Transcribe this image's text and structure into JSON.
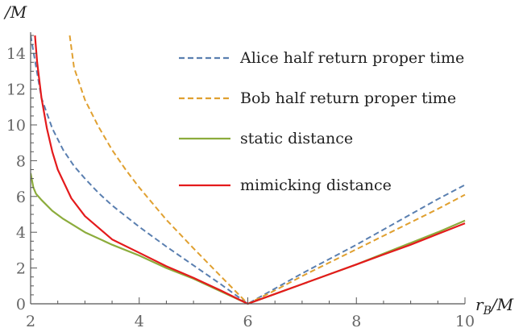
{
  "chart_data": {
    "type": "line",
    "xlabel": "r_B/M",
    "ylabel": "/M",
    "xlim": [
      2,
      10
    ],
    "ylim": [
      0,
      15
    ],
    "x_ticks": [
      2,
      4,
      6,
      8,
      10
    ],
    "y_ticks": [
      0,
      2,
      4,
      6,
      8,
      10,
      12,
      14
    ],
    "grid": false,
    "legend_position": "top-right",
    "series": [
      {
        "name": "Alice half return proper time",
        "color": "#5a7fb0",
        "style": "dashed",
        "points": [
          [
            2.0,
            15.0
          ],
          [
            2.2,
            11.5
          ],
          [
            2.4,
            9.8
          ],
          [
            2.6,
            8.6
          ],
          [
            2.8,
            7.7
          ],
          [
            3.0,
            7.0
          ],
          [
            3.25,
            6.2
          ],
          [
            3.5,
            5.5
          ],
          [
            3.75,
            4.9
          ],
          [
            4.0,
            4.3
          ],
          [
            4.5,
            3.2
          ],
          [
            5.0,
            2.15
          ],
          [
            5.5,
            1.1
          ],
          [
            6.0,
            0.0
          ],
          [
            6.5,
            0.85
          ],
          [
            7.0,
            1.7
          ],
          [
            7.5,
            2.5
          ],
          [
            8.0,
            3.3
          ],
          [
            8.5,
            4.15
          ],
          [
            9.0,
            5.0
          ],
          [
            9.5,
            5.85
          ],
          [
            10.0,
            6.65
          ]
        ]
      },
      {
        "name": "Bob half return proper time",
        "color": "#e0a030",
        "style": "dashed",
        "points": [
          [
            2.72,
            15.0
          ],
          [
            2.8,
            13.2
          ],
          [
            3.0,
            11.4
          ],
          [
            3.25,
            9.9
          ],
          [
            3.5,
            8.6
          ],
          [
            3.75,
            7.5
          ],
          [
            4.0,
            6.5
          ],
          [
            4.5,
            4.7
          ],
          [
            5.0,
            3.1
          ],
          [
            5.5,
            1.55
          ],
          [
            6.0,
            0.0
          ],
          [
            6.5,
            0.75
          ],
          [
            7.0,
            1.55
          ],
          [
            7.5,
            2.3
          ],
          [
            8.0,
            3.05
          ],
          [
            8.5,
            3.8
          ],
          [
            9.0,
            4.55
          ],
          [
            9.5,
            5.3
          ],
          [
            10.0,
            6.1
          ]
        ]
      },
      {
        "name": "static distance",
        "color": "#8cac3c",
        "style": "solid",
        "points": [
          [
            2.0,
            7.3
          ],
          [
            2.05,
            6.5
          ],
          [
            2.1,
            6.15
          ],
          [
            2.2,
            5.8
          ],
          [
            2.4,
            5.2
          ],
          [
            2.6,
            4.75
          ],
          [
            3.0,
            4.0
          ],
          [
            3.5,
            3.3
          ],
          [
            4.0,
            2.7
          ],
          [
            4.5,
            2.0
          ],
          [
            5.0,
            1.4
          ],
          [
            5.5,
            0.7
          ],
          [
            6.0,
            0.0
          ],
          [
            6.5,
            0.55
          ],
          [
            7.0,
            1.1
          ],
          [
            7.5,
            1.65
          ],
          [
            8.0,
            2.2
          ],
          [
            8.5,
            2.8
          ],
          [
            9.0,
            3.4
          ],
          [
            9.5,
            4.0
          ],
          [
            10.0,
            4.65
          ]
        ]
      },
      {
        "name": "mimicking distance",
        "color": "#e41a1c",
        "style": "solid",
        "points": [
          [
            2.08,
            15.0
          ],
          [
            2.12,
            13.5
          ],
          [
            2.2,
            11.5
          ],
          [
            2.3,
            9.8
          ],
          [
            2.4,
            8.5
          ],
          [
            2.5,
            7.5
          ],
          [
            2.75,
            5.9
          ],
          [
            3.0,
            4.9
          ],
          [
            3.5,
            3.6
          ],
          [
            4.0,
            2.85
          ],
          [
            4.5,
            2.1
          ],
          [
            5.0,
            1.45
          ],
          [
            5.5,
            0.75
          ],
          [
            6.0,
            0.0
          ],
          [
            6.5,
            0.55
          ],
          [
            7.0,
            1.1
          ],
          [
            7.5,
            1.65
          ],
          [
            8.0,
            2.2
          ],
          [
            8.5,
            2.75
          ],
          [
            9.0,
            3.3
          ],
          [
            9.5,
            3.9
          ],
          [
            10.0,
            4.5
          ]
        ]
      }
    ]
  }
}
